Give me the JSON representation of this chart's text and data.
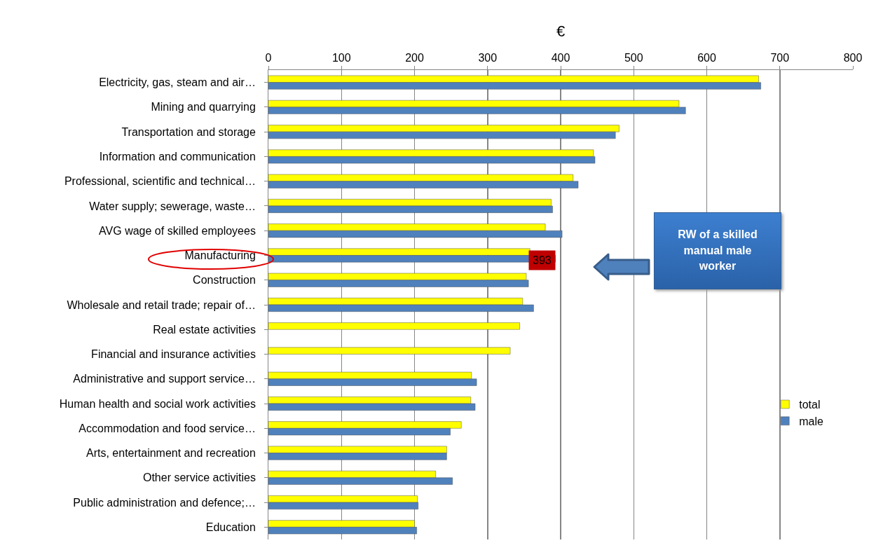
{
  "chart_data": {
    "type": "bar",
    "orientation": "horizontal",
    "xlabel": "€",
    "categories": [
      "Electricity, gas, steam and air…",
      "Mining and quarrying",
      "Transportation and storage",
      "Information and communication",
      "Professional, scientific and technical…",
      "Water supply; sewerage, waste…",
      "AVG wage of skilled employees",
      "Manufacturing",
      "Construction",
      "Wholesale and retail trade; repair of…",
      "Real estate activities",
      "Financial and insurance activities",
      "Administrative and support service…",
      "Human health and social work activities",
      "Accommodation and food service…",
      "Arts, entertainment and recreation",
      "Other service activities",
      "Public administration and defence;…",
      "Education"
    ],
    "series": [
      {
        "name": "total",
        "color": "#ffff00",
        "values": [
          671,
          562,
          480,
          445,
          417,
          387,
          379,
          358,
          353,
          348,
          344,
          331,
          278,
          277,
          264,
          244,
          229,
          204,
          200
        ]
      },
      {
        "name": "male",
        "color": "#4f81bd",
        "values": [
          674,
          571,
          475,
          447,
          424,
          389,
          402,
          393,
          356,
          363,
          null,
          null,
          285,
          283,
          249,
          244,
          252,
          205,
          203
        ],
        "value_labels": [
          null,
          null,
          null,
          null,
          null,
          null,
          null,
          "393",
          null,
          null,
          null,
          null,
          null,
          null,
          null,
          null,
          null,
          null,
          null
        ]
      }
    ],
    "xlim": [
      0,
      800
    ],
    "xticks": [
      0,
      100,
      200,
      300,
      400,
      500,
      600,
      700,
      800
    ],
    "grid": "x",
    "legend": "right",
    "annotations": [
      "RW of a skilled manual male worker"
    ]
  }
}
